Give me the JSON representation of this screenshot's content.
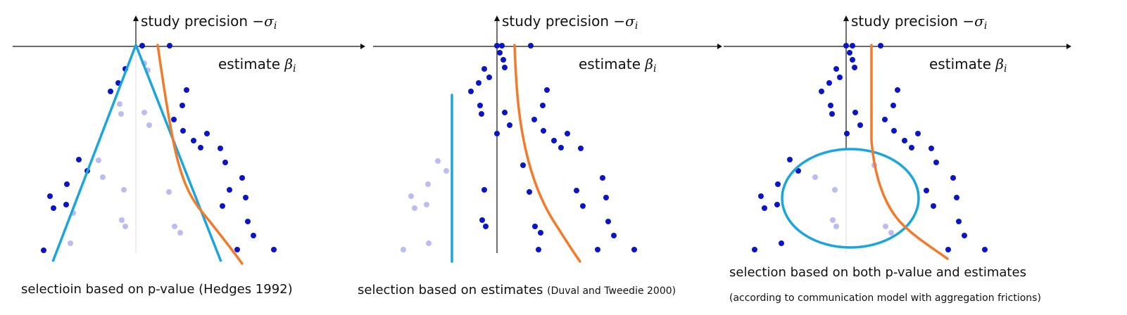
{
  "colors": {
    "significant_dot": "#0a14c8",
    "unpublished_dot": "#bcbcf0",
    "selection_line": "#1aa6dc",
    "true_curve": "#f47a2a",
    "axis": "#111111"
  },
  "axes": {
    "y_label": "study precision −",
    "y_symbol": "σ",
    "y_sub": "i",
    "x_label": "estimate ",
    "x_symbol": "β",
    "x_sub": "i"
  },
  "panels": [
    {
      "caption_main": "selectioin based on p-value (Hedges 1992)",
      "caption_ref": ""
    },
    {
      "caption_main": "selection based on estimates",
      "caption_ref": "(Duval and Tweedie 2000)"
    },
    {
      "caption_main": "selection based on both p-value and estimates",
      "caption_ref": "(according to communication model with aggregation frictions)"
    }
  ]
}
